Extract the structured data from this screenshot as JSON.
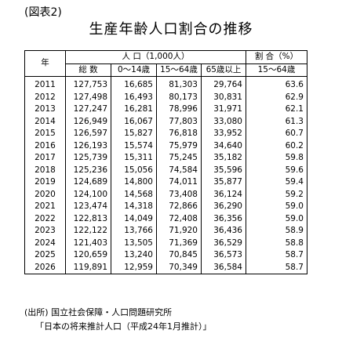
{
  "figure_label": "(図表2)",
  "title": "生産年齢人口割合の推移",
  "table": {
    "header_year": "年",
    "header_population": "人 口（1,000人）",
    "header_ratio": "割 合（%）",
    "sub_total": "総 数",
    "sub_0_14": "0～14歳",
    "sub_15_64": "15～64歳",
    "sub_65plus": "65歳以上",
    "sub_ratio": "15～64歳",
    "rows": [
      {
        "year": "2011",
        "total": "127,753",
        "a0_14": "16,685",
        "a15_64": "81,303",
        "a65": "29,764",
        "ratio": "63.6"
      },
      {
        "year": "2012",
        "total": "127,498",
        "a0_14": "16,493",
        "a15_64": "80,173",
        "a65": "30,831",
        "ratio": "62.9"
      },
      {
        "year": "2013",
        "total": "127,247",
        "a0_14": "16,281",
        "a15_64": "78,996",
        "a65": "31,971",
        "ratio": "62.1"
      },
      {
        "year": "2014",
        "total": "126,949",
        "a0_14": "16,067",
        "a15_64": "77,803",
        "a65": "33,080",
        "ratio": "61.3"
      },
      {
        "year": "2015",
        "total": "126,597",
        "a0_14": "15,827",
        "a15_64": "76,818",
        "a65": "33,952",
        "ratio": "60.7"
      },
      {
        "year": "2016",
        "total": "126,193",
        "a0_14": "15,574",
        "a15_64": "75,979",
        "a65": "34,640",
        "ratio": "60.2"
      },
      {
        "year": "2017",
        "total": "125,739",
        "a0_14": "15,311",
        "a15_64": "75,245",
        "a65": "35,182",
        "ratio": "59.8"
      },
      {
        "year": "2018",
        "total": "125,236",
        "a0_14": "15,056",
        "a15_64": "74,584",
        "a65": "35,596",
        "ratio": "59.6"
      },
      {
        "year": "2019",
        "total": "124,689",
        "a0_14": "14,800",
        "a15_64": "74,011",
        "a65": "35,877",
        "ratio": "59.4"
      },
      {
        "year": "2020",
        "total": "124,100",
        "a0_14": "14,568",
        "a15_64": "73,408",
        "a65": "36,124",
        "ratio": "59.2"
      },
      {
        "year": "2021",
        "total": "123,474",
        "a0_14": "14,318",
        "a15_64": "72,866",
        "a65": "36,290",
        "ratio": "59.0"
      },
      {
        "year": "2022",
        "total": "122,813",
        "a0_14": "14,049",
        "a15_64": "72,408",
        "a65": "36,356",
        "ratio": "59.0"
      },
      {
        "year": "2023",
        "total": "122,122",
        "a0_14": "13,766",
        "a15_64": "71,920",
        "a65": "36,436",
        "ratio": "58.9"
      },
      {
        "year": "2024",
        "total": "121,403",
        "a0_14": "13,505",
        "a15_64": "71,369",
        "a65": "36,529",
        "ratio": "58.8"
      },
      {
        "year": "2025",
        "total": "120,659",
        "a0_14": "13,240",
        "a15_64": "70,845",
        "a65": "36,573",
        "ratio": "58.7"
      },
      {
        "year": "2026",
        "total": "119,891",
        "a0_14": "12,959",
        "a15_64": "70,349",
        "a65": "36,584",
        "ratio": "58.7"
      }
    ]
  },
  "source_line1": "(出所) 国立社会保障・人口問題研究所",
  "source_line2": "「日本の将来推計人口（平成24年1月推計）」"
}
